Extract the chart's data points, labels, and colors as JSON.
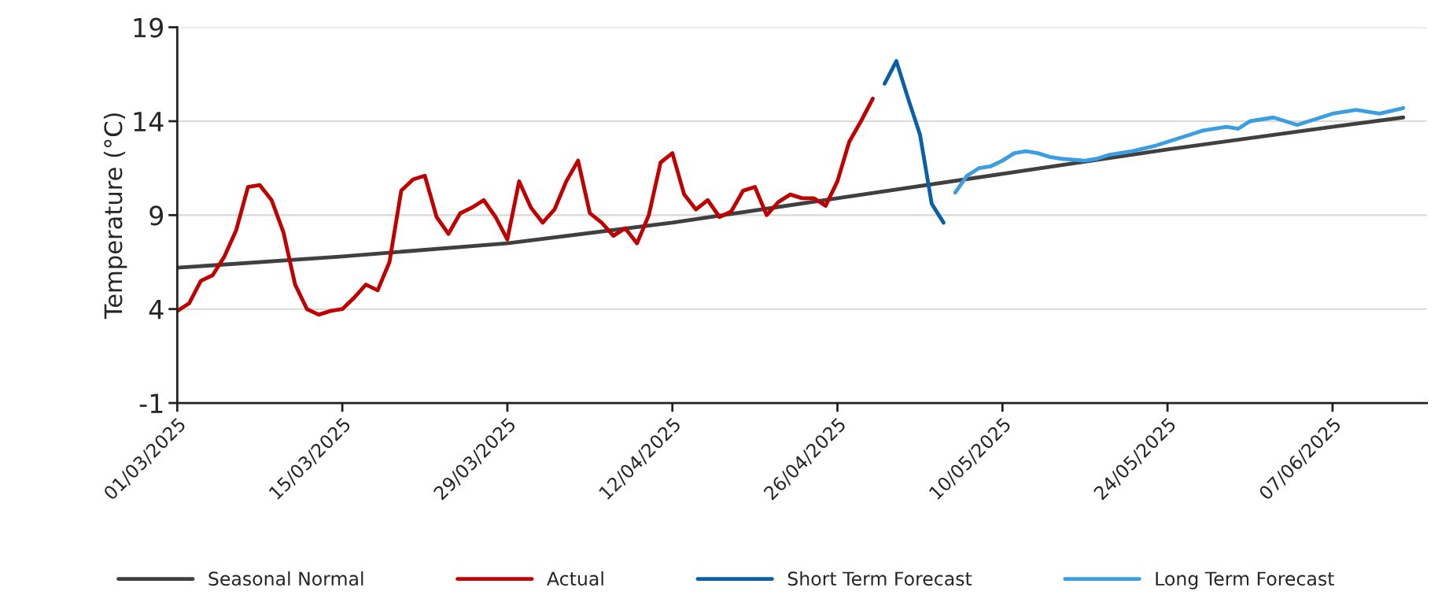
{
  "chart_data": {
    "type": "line",
    "ylabel": "Temperature (°C)",
    "series": [
      {
        "name": "Seasonal Normal",
        "color": "#404040",
        "x": [
          "2025-03-01",
          "2025-03-15",
          "2025-03-29",
          "2025-04-12",
          "2025-04-26",
          "2025-05-10",
          "2025-05-24",
          "2025-06-07",
          "2025-06-13"
        ],
        "values": [
          6.2,
          6.8,
          7.5,
          8.6,
          9.9,
          11.2,
          12.5,
          13.7,
          14.2
        ]
      },
      {
        "name": "Actual",
        "color": "#c00000",
        "x": [
          "2025-03-01",
          "2025-03-02",
          "2025-03-03",
          "2025-03-04",
          "2025-03-05",
          "2025-03-06",
          "2025-03-07",
          "2025-03-08",
          "2025-03-09",
          "2025-03-10",
          "2025-03-11",
          "2025-03-12",
          "2025-03-13",
          "2025-03-14",
          "2025-03-15",
          "2025-03-16",
          "2025-03-17",
          "2025-03-18",
          "2025-03-19",
          "2025-03-20",
          "2025-03-21",
          "2025-03-22",
          "2025-03-23",
          "2025-03-24",
          "2025-03-25",
          "2025-03-26",
          "2025-03-27",
          "2025-03-28",
          "2025-03-29",
          "2025-03-30",
          "2025-03-31",
          "2025-04-01",
          "2025-04-02",
          "2025-04-03",
          "2025-04-04",
          "2025-04-05",
          "2025-04-06",
          "2025-04-07",
          "2025-04-08",
          "2025-04-09",
          "2025-04-10",
          "2025-04-11",
          "2025-04-12",
          "2025-04-13",
          "2025-04-14",
          "2025-04-15",
          "2025-04-16",
          "2025-04-17",
          "2025-04-18",
          "2025-04-19",
          "2025-04-20",
          "2025-04-21",
          "2025-04-22",
          "2025-04-23",
          "2025-04-24",
          "2025-04-25",
          "2025-04-26",
          "2025-04-27",
          "2025-04-28",
          "2025-04-29"
        ],
        "values": [
          3.9,
          4.3,
          5.5,
          5.8,
          6.8,
          8.2,
          10.5,
          10.6,
          9.8,
          8.1,
          5.3,
          4.0,
          3.7,
          3.9,
          4.0,
          4.6,
          5.3,
          5.0,
          6.5,
          10.3,
          10.9,
          11.1,
          8.9,
          8.0,
          9.1,
          9.4,
          9.8,
          8.9,
          7.7,
          10.8,
          9.4,
          8.6,
          9.3,
          10.8,
          11.9,
          9.1,
          8.6,
          7.9,
          8.3,
          7.5,
          9.0,
          11.8,
          12.3,
          10.1,
          9.3,
          9.8,
          8.9,
          9.2,
          10.3,
          10.5,
          9.0,
          9.7,
          10.1,
          9.9,
          9.9,
          9.5,
          10.8,
          12.9,
          14.0,
          15.2
        ]
      },
      {
        "name": "Short Term Forecast",
        "color": "#0b5ea8",
        "x": [
          "2025-04-30",
          "2025-05-01",
          "2025-05-02",
          "2025-05-03",
          "2025-05-04",
          "2025-05-05"
        ],
        "values": [
          16.0,
          17.2,
          15.2,
          13.3,
          9.6,
          8.6
        ]
      },
      {
        "name": "Long Term Forecast",
        "color": "#3b9ee0",
        "x": [
          "2025-05-06",
          "2025-05-07",
          "2025-05-08",
          "2025-05-09",
          "2025-05-10",
          "2025-05-11",
          "2025-05-12",
          "2025-05-13",
          "2025-05-14",
          "2025-05-15",
          "2025-05-17",
          "2025-05-18",
          "2025-05-19",
          "2025-05-21",
          "2025-05-23",
          "2025-05-24",
          "2025-05-26",
          "2025-05-27",
          "2025-05-29",
          "2025-05-30",
          "2025-05-31",
          "2025-06-02",
          "2025-06-04",
          "2025-06-05",
          "2025-06-07",
          "2025-06-09",
          "2025-06-11",
          "2025-06-13"
        ],
        "values": [
          10.2,
          11.1,
          11.5,
          11.6,
          11.9,
          12.3,
          12.4,
          12.3,
          12.1,
          12.0,
          11.9,
          12.0,
          12.2,
          12.4,
          12.7,
          12.9,
          13.3,
          13.5,
          13.7,
          13.6,
          14.0,
          14.2,
          13.8,
          14.0,
          14.4,
          14.6,
          14.4,
          14.7
        ]
      }
    ],
    "xlim": [
      "2025-03-01",
      "2025-06-15"
    ],
    "xticks": [
      {
        "value": "2025-03-01",
        "label": "01/03/2025"
      },
      {
        "value": "2025-03-15",
        "label": "15/03/2025"
      },
      {
        "value": "2025-03-29",
        "label": "29/03/2025"
      },
      {
        "value": "2025-04-12",
        "label": "12/04/2025"
      },
      {
        "value": "2025-04-26",
        "label": "26/04/2025"
      },
      {
        "value": "2025-05-10",
        "label": "10/05/2025"
      },
      {
        "value": "2025-05-24",
        "label": "24/05/2025"
      },
      {
        "value": "2025-06-07",
        "label": "07/06/2025"
      }
    ],
    "ylim": [
      -1,
      19
    ],
    "yticks": [
      -1,
      4,
      9,
      14,
      19
    ],
    "grid": "y",
    "legend": "bottom",
    "line_style": "solid"
  }
}
